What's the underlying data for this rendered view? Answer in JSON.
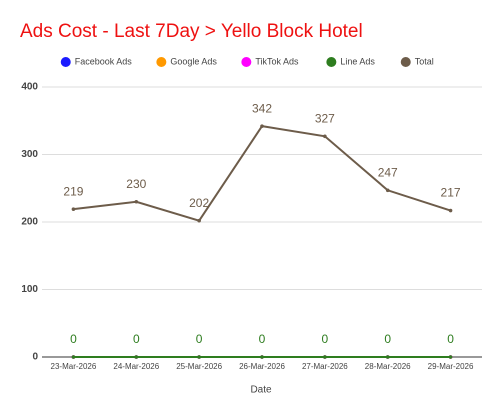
{
  "chart_data": {
    "type": "line",
    "title": "Ads Cost - Last 7Day > Yello Block Hotel",
    "x_label": "Date",
    "categories": [
      "23-Mar-2026",
      "24-Mar-2026",
      "25-Mar-2026",
      "26-Mar-2026",
      "27-Mar-2026",
      "28-Mar-2026",
      "29-Mar-2026"
    ],
    "series": [
      {
        "name": "Facebook Ads",
        "color": "#1a1aff",
        "values": [
          0,
          0,
          0,
          0,
          0,
          0,
          0
        ],
        "data_labels": false
      },
      {
        "name": "Google Ads",
        "color": "#ff9900",
        "values": [
          0,
          0,
          0,
          0,
          0,
          0,
          0
        ],
        "data_labels": false
      },
      {
        "name": "TikTok Ads",
        "color": "#ff00ff",
        "values": [
          0,
          0,
          0,
          0,
          0,
          0,
          0
        ],
        "data_labels": false
      },
      {
        "name": "Line Ads",
        "color": "#2e7d1f",
        "values": [
          0,
          0,
          0,
          0,
          0,
          0,
          0
        ],
        "data_labels": true
      },
      {
        "name": "Total",
        "color": "#6d5c4a",
        "values": [
          219,
          230,
          202,
          342,
          327,
          247,
          217
        ],
        "data_labels": true
      }
    ],
    "ylim": [
      0,
      400
    ],
    "yticks": [
      0,
      100,
      200,
      300,
      400
    ],
    "grid": true,
    "legend": "top"
  }
}
